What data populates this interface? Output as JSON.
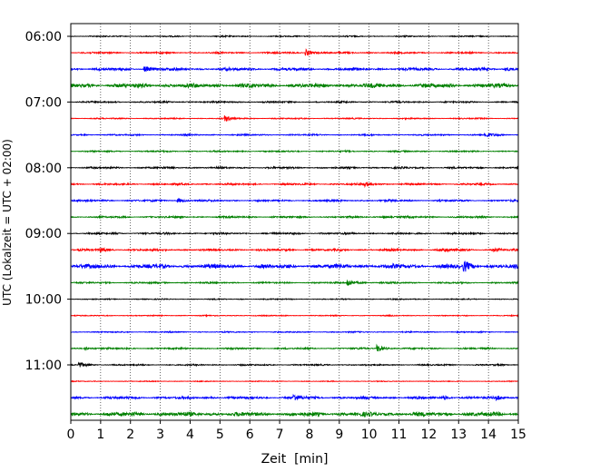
{
  "chart_data": {
    "type": "line",
    "title": "",
    "xlabel": "Zeit  [min]",
    "ylabel": "UTC (Lokalzeit = UTC + 02:00)",
    "xlim": [
      0,
      15
    ],
    "x_ticks": [
      "0",
      "1",
      "2",
      "3",
      "4",
      "5",
      "6",
      "7",
      "8",
      "9",
      "10",
      "11",
      "12",
      "13",
      "14",
      "15"
    ],
    "y_ticks": [
      "06:00",
      "07:00",
      "08:00",
      "09:00",
      "10:00",
      "11:00"
    ],
    "grid": "vertical dotted",
    "minutes_per_trace": 15,
    "trace_colors": [
      "#000000",
      "#ff0000",
      "#0000ff",
      "#008000"
    ],
    "series": [
      {
        "start": "06:00",
        "amp": 0.6,
        "events": []
      },
      {
        "start": "06:15",
        "amp": 0.8,
        "events": [
          {
            "t": 7.9,
            "amp": 3.5
          }
        ]
      },
      {
        "start": "06:30",
        "amp": 1.3,
        "events": [
          {
            "t": 2.5,
            "amp": 2.5
          },
          {
            "t": 14.6,
            "amp": 1.5
          }
        ]
      },
      {
        "start": "06:45",
        "amp": 2.0,
        "events": []
      },
      {
        "start": "07:00",
        "amp": 0.8,
        "events": []
      },
      {
        "start": "07:15",
        "amp": 0.6,
        "events": [
          {
            "t": 5.2,
            "amp": 3.0
          }
        ]
      },
      {
        "start": "07:30",
        "amp": 0.7,
        "events": [
          {
            "t": 13.9,
            "amp": 2.5
          }
        ]
      },
      {
        "start": "07:45",
        "amp": 0.7,
        "events": []
      },
      {
        "start": "08:00",
        "amp": 0.9,
        "events": []
      },
      {
        "start": "08:15",
        "amp": 0.9,
        "events": [
          {
            "t": 9.9,
            "amp": 2.0
          }
        ]
      },
      {
        "start": "08:30",
        "amp": 0.9,
        "events": [
          {
            "t": 3.6,
            "amp": 2.0
          }
        ]
      },
      {
        "start": "08:45",
        "amp": 0.9,
        "events": [
          {
            "t": 10.5,
            "amp": 1.5
          }
        ]
      },
      {
        "start": "09:00",
        "amp": 0.9,
        "events": []
      },
      {
        "start": "09:15",
        "amp": 1.0,
        "events": [
          {
            "t": 1.0,
            "amp": 2.0
          },
          {
            "t": 12.5,
            "amp": 1.8
          },
          {
            "t": 14.2,
            "amp": 1.8
          }
        ]
      },
      {
        "start": "09:30",
        "amp": 2.0,
        "events": [
          {
            "t": 13.2,
            "amp": 4.5
          }
        ]
      },
      {
        "start": "09:45",
        "amp": 0.8,
        "events": [
          {
            "t": 9.3,
            "amp": 4.0
          }
        ]
      },
      {
        "start": "10:00",
        "amp": 0.5,
        "events": []
      },
      {
        "start": "10:15",
        "amp": 0.5,
        "events": []
      },
      {
        "start": "10:30",
        "amp": 0.6,
        "events": []
      },
      {
        "start": "10:45",
        "amp": 0.8,
        "events": [
          {
            "t": 0.5,
            "amp": 1.5
          },
          {
            "t": 10.3,
            "amp": 3.5
          }
        ]
      },
      {
        "start": "11:00",
        "amp": 0.7,
        "events": [
          {
            "t": 0.3,
            "amp": 2.5
          }
        ]
      },
      {
        "start": "11:15",
        "amp": 0.4,
        "events": []
      },
      {
        "start": "11:30",
        "amp": 1.2,
        "events": [
          {
            "t": 7.5,
            "amp": 3.0
          },
          {
            "t": 12.5,
            "amp": 1.8
          },
          {
            "t": 14.3,
            "amp": 2.0
          }
        ]
      },
      {
        "start": "11:45",
        "amp": 2.0,
        "events": []
      }
    ]
  }
}
